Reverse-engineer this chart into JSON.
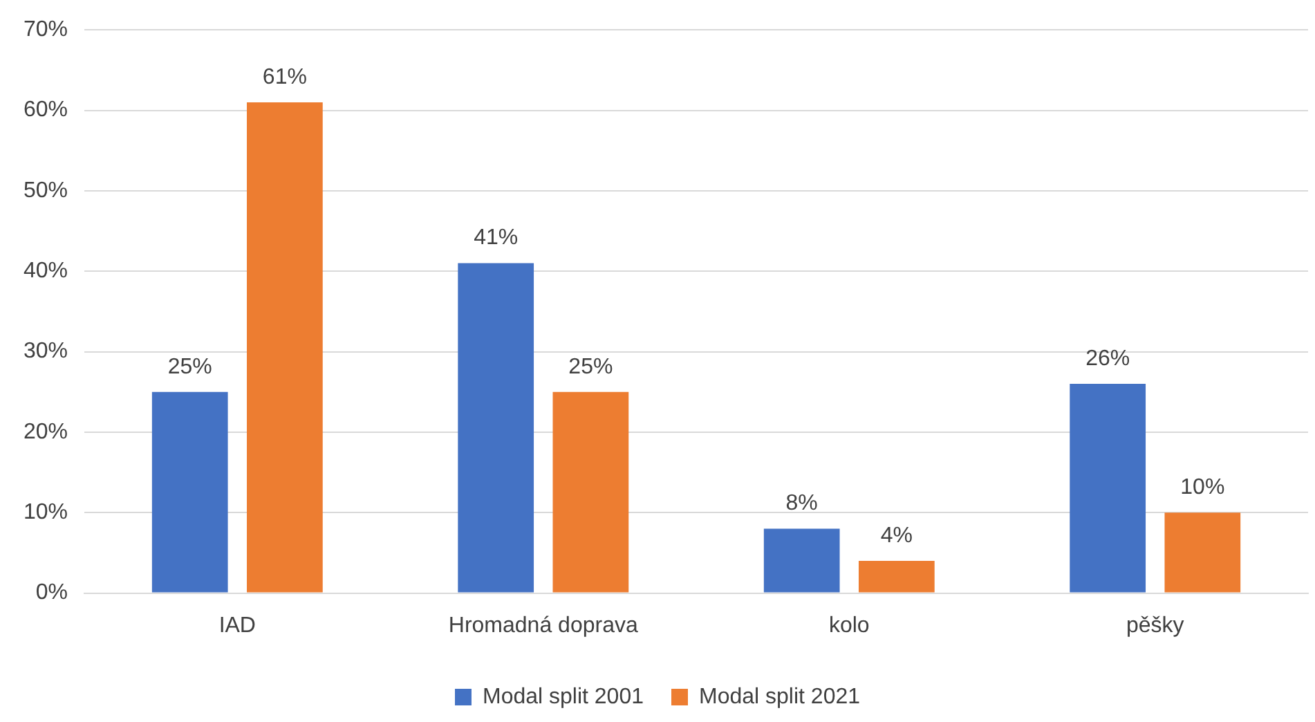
{
  "chart_data": {
    "type": "bar",
    "categories": [
      "IAD",
      "Hromadná doprava",
      "kolo",
      "pěšky"
    ],
    "series": [
      {
        "name": "Modal split 2001",
        "color": "#4472c4",
        "values": [
          25,
          41,
          8,
          26
        ],
        "value_labels": [
          "25%",
          "41%",
          "8%",
          "26%"
        ]
      },
      {
        "name": "Modal split 2021",
        "color": "#ed7d31",
        "values": [
          61,
          25,
          4,
          10
        ],
        "value_labels": [
          "61%",
          "25%",
          "4%",
          "10%"
        ]
      }
    ],
    "ylim": [
      0,
      70
    ],
    "yticks": [
      {
        "value": 0,
        "label": "0%"
      },
      {
        "value": 10,
        "label": "10%"
      },
      {
        "value": 20,
        "label": "20%"
      },
      {
        "value": 30,
        "label": "30%"
      },
      {
        "value": 40,
        "label": "40%"
      },
      {
        "value": 50,
        "label": "50%"
      },
      {
        "value": 60,
        "label": "60%"
      },
      {
        "value": 70,
        "label": "70%"
      }
    ],
    "grid": "y",
    "legend": "bottom"
  }
}
